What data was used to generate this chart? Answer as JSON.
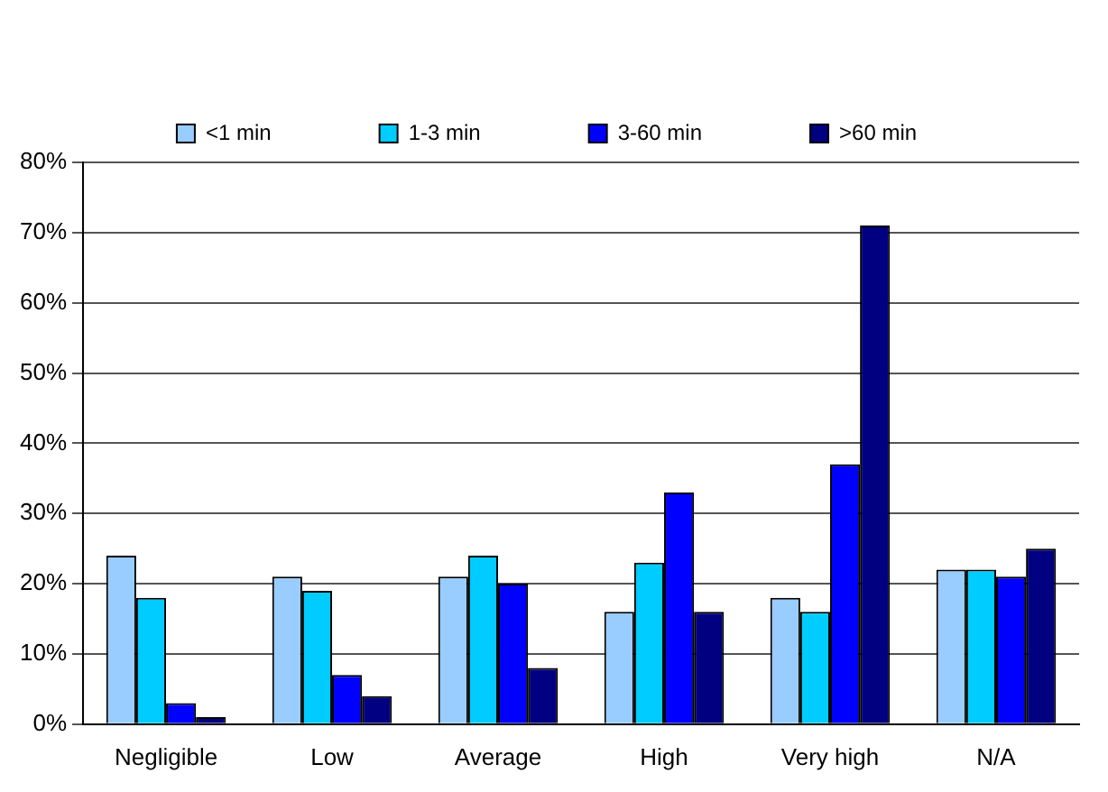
{
  "chart_data": {
    "type": "bar",
    "categories": [
      "Negligible",
      "Low",
      "Average",
      "High",
      "Very high",
      "N/A"
    ],
    "series": [
      {
        "name": "<1 min",
        "color": "#99ccff",
        "values": [
          24,
          21,
          21,
          16,
          18,
          22
        ]
      },
      {
        "name": "1-3 min",
        "color": "#00ccff",
        "values": [
          18,
          19,
          24,
          23,
          16,
          22
        ]
      },
      {
        "name": "3-60 min",
        "color": "#0000ff",
        "values": [
          3,
          7,
          20,
          33,
          37,
          21
        ]
      },
      {
        "name": ">60 min",
        "color": "#000080",
        "values": [
          1,
          4,
          8,
          16,
          71,
          25
        ]
      }
    ],
    "ylim": [
      0,
      80
    ],
    "yticks": [
      {
        "value": 0,
        "label": "0%"
      },
      {
        "value": 10,
        "label": "10%"
      },
      {
        "value": 20,
        "label": "20%"
      },
      {
        "value": 30,
        "label": "30%"
      },
      {
        "value": 40,
        "label": "40%"
      },
      {
        "value": 50,
        "label": "50%"
      },
      {
        "value": 60,
        "label": "60%"
      },
      {
        "value": 70,
        "label": "70%"
      },
      {
        "value": 80,
        "label": "80%"
      }
    ],
    "grid": "y",
    "legend": "top"
  }
}
